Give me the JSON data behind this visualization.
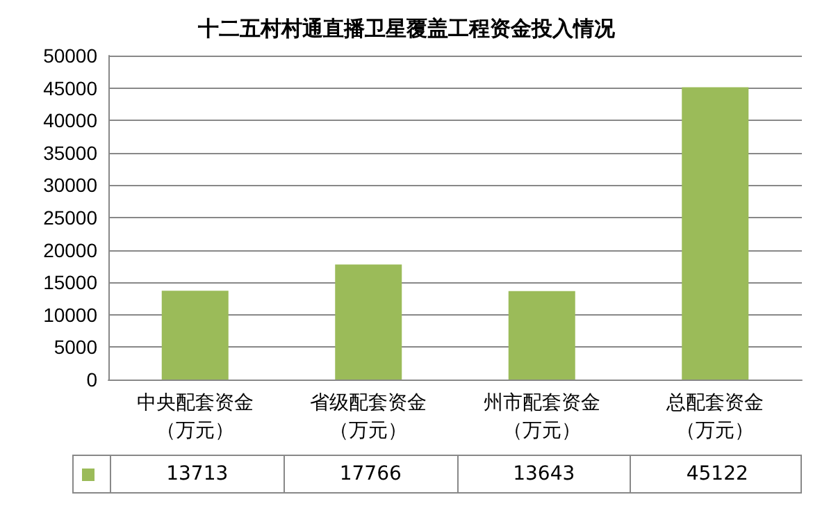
{
  "chart_data": {
    "type": "bar",
    "title": "十二五村村通直播卫星覆盖工程资金投入情况",
    "categories": [
      "中央配套资金（万元）",
      "省级配套资金（万元）",
      "州市配套资金（万元）",
      "总配套资金（万元）"
    ],
    "values": [
      13713,
      17766,
      13643,
      45122
    ],
    "color": "#9bbb59",
    "ylim": [
      0,
      50000
    ],
    "yticks": [
      0,
      5000,
      10000,
      15000,
      20000,
      25000,
      30000,
      35000,
      40000,
      45000,
      50000
    ],
    "grid": "y",
    "data_labels": true
  }
}
